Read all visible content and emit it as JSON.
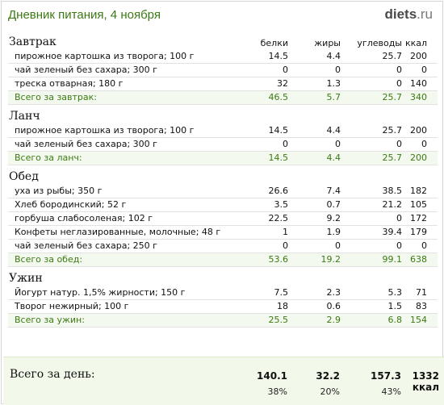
{
  "title": "Дневник питания, 4 ноября",
  "logo": {
    "part1": "diets",
    "part2": ".ru"
  },
  "columns": [
    "белки",
    "жиры",
    "углеводы",
    "ккал"
  ],
  "meals": [
    {
      "name": "Завтрак",
      "items": [
        {
          "name": "пирожное картошка из творога; 100 г",
          "values": [
            "14.5",
            "4.4",
            "25.7",
            "200"
          ]
        },
        {
          "name": "чай зеленый без сахара; 300 г",
          "values": [
            "0",
            "0",
            "0",
            "0"
          ]
        },
        {
          "name": "треска отварная; 180 г",
          "values": [
            "32",
            "1.3",
            "0",
            "140"
          ]
        }
      ],
      "total": {
        "label": "Всего за завтрак:",
        "values": [
          "46.5",
          "5.7",
          "25.7",
          "340"
        ]
      }
    },
    {
      "name": "Ланч",
      "items": [
        {
          "name": "пирожное картошка из творога; 100 г",
          "values": [
            "14.5",
            "4.4",
            "25.7",
            "200"
          ]
        },
        {
          "name": "чай зеленый без сахара; 300 г",
          "values": [
            "0",
            "0",
            "0",
            "0"
          ]
        }
      ],
      "total": {
        "label": "Всего за ланч:",
        "values": [
          "14.5",
          "4.4",
          "25.7",
          "200"
        ]
      }
    },
    {
      "name": "Обед",
      "items": [
        {
          "name": "уха из рыбы; 350 г",
          "values": [
            "26.6",
            "7.4",
            "38.5",
            "182"
          ]
        },
        {
          "name": "Хлеб бородинский; 52 г",
          "values": [
            "3.5",
            "0.7",
            "21.2",
            "105"
          ]
        },
        {
          "name": "горбуша слабосоленая; 102 г",
          "values": [
            "22.5",
            "9.2",
            "0",
            "172"
          ]
        },
        {
          "name": "Конфеты неглазированные, молочные; 48 г",
          "values": [
            "1",
            "1.9",
            "39.4",
            "179"
          ]
        },
        {
          "name": "чай зеленый без сахара; 250 г",
          "values": [
            "0",
            "0",
            "0",
            "0"
          ]
        }
      ],
      "total": {
        "label": "Всего за обед:",
        "values": [
          "53.6",
          "19.2",
          "99.1",
          "638"
        ]
      }
    },
    {
      "name": "Ужин",
      "items": [
        {
          "name": "Йогурт натур. 1,5% жирности; 150 г",
          "values": [
            "7.5",
            "2.3",
            "5.3",
            "71"
          ]
        },
        {
          "name": "Творог нежирный; 100 г",
          "values": [
            "18",
            "0.6",
            "1.5",
            "83"
          ]
        }
      ],
      "total": {
        "label": "Всего за ужин:",
        "values": [
          "25.5",
          "2.9",
          "6.8",
          "154"
        ]
      }
    }
  ],
  "day_total": {
    "label": "Всего за день:",
    "values": [
      "140.1",
      "32.2",
      "157.3",
      "1332 ккал"
    ],
    "percents": [
      "38%",
      "20%",
      "43%"
    ]
  }
}
